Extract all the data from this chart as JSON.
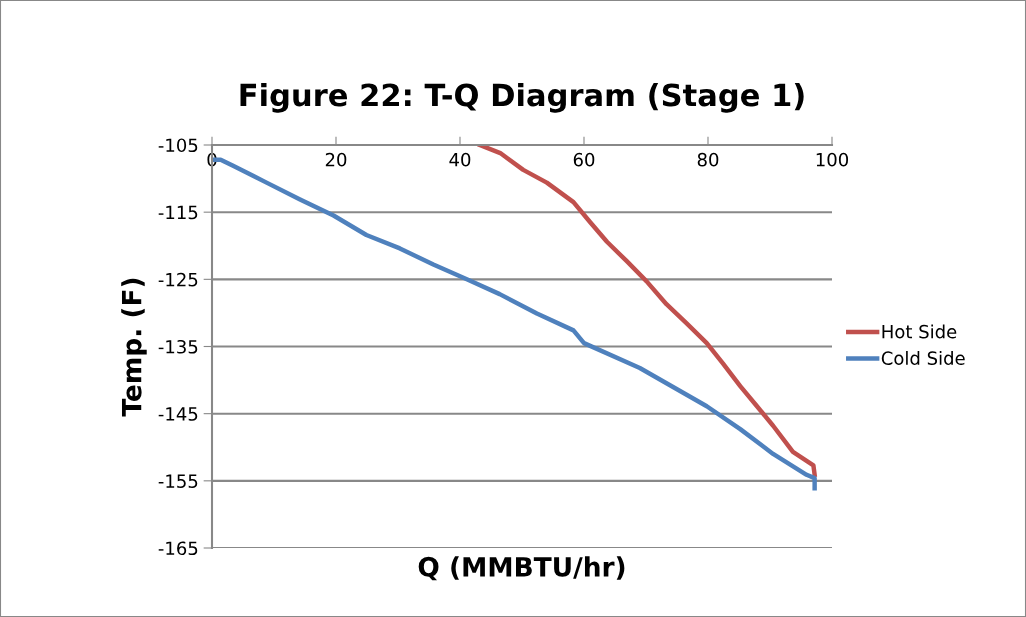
{
  "chart_data": {
    "type": "line",
    "title": "Figure 22: T-Q Diagram (Stage 1)",
    "xlabel": "Q (MMBTU/hr)",
    "ylabel": "Temp. (F)",
    "xlim": [
      0,
      100
    ],
    "xticks": [
      0,
      20,
      40,
      60,
      80,
      100
    ],
    "ylim": [
      -165,
      -105
    ],
    "yticks": [
      -165,
      -155,
      -145,
      -135,
      -125,
      -115,
      -105
    ],
    "grid": "y",
    "legend": "right",
    "marker": "none",
    "line_style": "solid",
    "series": [
      {
        "name": "Hot Side",
        "color": "#c0504d",
        "x": [
          43.2,
          46.5,
          50.2,
          54,
          58.3,
          61,
          63.7,
          66.9,
          70.1,
          73.3,
          76.6,
          79.8,
          82.4,
          85.2,
          87.9,
          90.5,
          93.7,
          97,
          97.2
        ],
        "values": [
          -105,
          -106.2,
          -108.7,
          -110.6,
          -113.5,
          -116.5,
          -119.4,
          -122.3,
          -125.3,
          -128.7,
          -131.6,
          -134.5,
          -137.5,
          -140.9,
          -143.9,
          -146.8,
          -150.7,
          -152.7,
          -154.1
        ]
      },
      {
        "name": "Cold Side",
        "color": "#4f81bd",
        "x": [
          0,
          1.4,
          3.4,
          8.8,
          14.2,
          19.6,
          24.9,
          30.3,
          35.7,
          41.1,
          46.4,
          52.4,
          58.3,
          60,
          69,
          79.8,
          85.2,
          90.5,
          95.9,
          97.2,
          97.2
        ],
        "values": [
          -107.2,
          -107.2,
          -108.1,
          -110.6,
          -113.1,
          -115.5,
          -118.4,
          -120.4,
          -122.8,
          -125.0,
          -127.2,
          -130.1,
          -132.6,
          -134.5,
          -138.2,
          -143.9,
          -147.3,
          -151.0,
          -154.1,
          -154.6,
          -156.1
        ]
      }
    ]
  }
}
